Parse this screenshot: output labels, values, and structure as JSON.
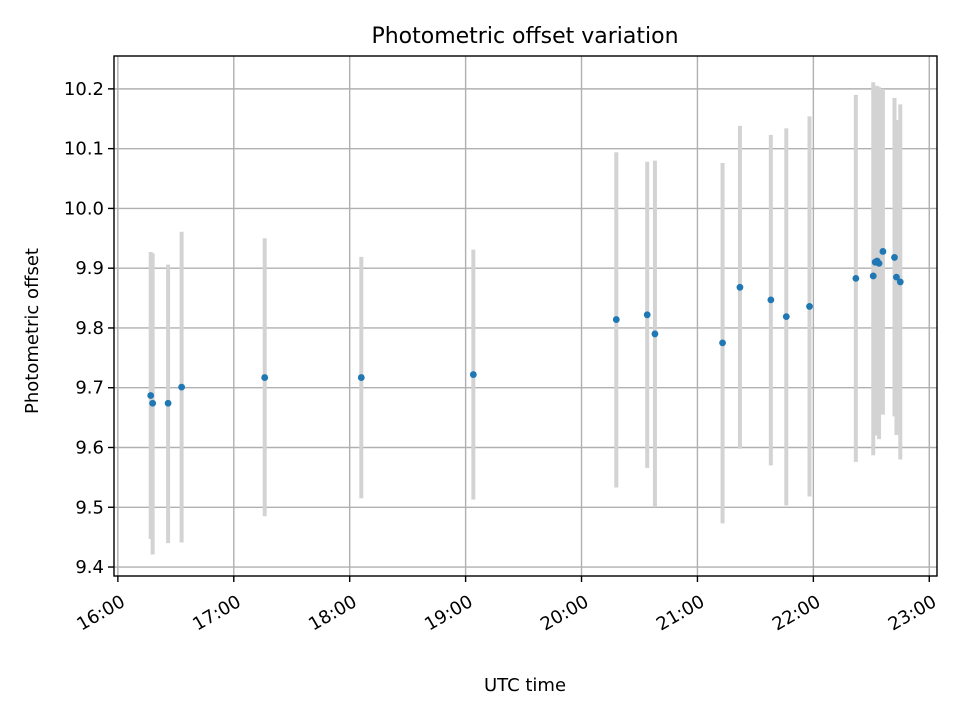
{
  "chart_data": {
    "type": "scatter",
    "title": "Photometric offset variation",
    "xlabel": "UTC time",
    "ylabel": "Photometric offset",
    "xlim": [
      "15:58",
      "23:04"
    ],
    "ylim": [
      9.385,
      10.255
    ],
    "xticks": [
      "16:00",
      "17:00",
      "18:00",
      "19:00",
      "20:00",
      "21:00",
      "22:00",
      "23:00"
    ],
    "yticks": [
      "9.4",
      "9.5",
      "9.6",
      "9.7",
      "9.8",
      "9.9",
      "10.0",
      "10.1",
      "10.2"
    ],
    "grid": true,
    "series": [
      {
        "color": "#1f77b4",
        "error_color": "#d3d3d3",
        "points": [
          {
            "x": "16:17",
            "y": 9.687,
            "ylo": 9.447,
            "yhi": 9.927
          },
          {
            "x": "16:18",
            "y": 9.674,
            "ylo": 9.421,
            "yhi": 9.925
          },
          {
            "x": "16:26",
            "y": 9.674,
            "ylo": 9.44,
            "yhi": 9.906
          },
          {
            "x": "16:33",
            "y": 9.701,
            "ylo": 9.441,
            "yhi": 9.961
          },
          {
            "x": "17:16",
            "y": 9.717,
            "ylo": 9.485,
            "yhi": 9.95
          },
          {
            "x": "18:06",
            "y": 9.717,
            "ylo": 9.515,
            "yhi": 9.919
          },
          {
            "x": "19:04",
            "y": 9.722,
            "ylo": 9.513,
            "yhi": 9.931
          },
          {
            "x": "20:18",
            "y": 9.814,
            "ylo": 9.533,
            "yhi": 10.094
          },
          {
            "x": "20:34",
            "y": 9.822,
            "ylo": 9.566,
            "yhi": 10.078
          },
          {
            "x": "20:38",
            "y": 9.79,
            "ylo": 9.5,
            "yhi": 10.08
          },
          {
            "x": "21:13",
            "y": 9.775,
            "ylo": 9.473,
            "yhi": 10.076
          },
          {
            "x": "21:22",
            "y": 9.868,
            "ylo": 9.598,
            "yhi": 10.138
          },
          {
            "x": "21:38",
            "y": 9.847,
            "ylo": 9.57,
            "yhi": 10.123
          },
          {
            "x": "21:46",
            "y": 9.819,
            "ylo": 9.503,
            "yhi": 10.134
          },
          {
            "x": "21:58",
            "y": 9.836,
            "ylo": 9.518,
            "yhi": 10.154
          },
          {
            "x": "22:22",
            "y": 9.883,
            "ylo": 9.576,
            "yhi": 10.19
          },
          {
            "x": "22:31",
            "y": 9.887,
            "ylo": 9.587,
            "yhi": 10.211
          },
          {
            "x": "22:32",
            "y": 9.91,
            "ylo": 9.62,
            "yhi": 10.2
          },
          {
            "x": "22:33",
            "y": 9.912,
            "ylo": 9.625,
            "yhi": 10.205
          },
          {
            "x": "22:34",
            "y": 9.908,
            "ylo": 9.614,
            "yhi": 10.203
          },
          {
            "x": "22:36",
            "y": 9.928,
            "ylo": 9.655,
            "yhi": 10.2
          },
          {
            "x": "22:42",
            "y": 9.918,
            "ylo": 9.652,
            "yhi": 10.185
          },
          {
            "x": "22:43",
            "y": 9.885,
            "ylo": 9.621,
            "yhi": 10.148
          },
          {
            "x": "22:45",
            "y": 9.877,
            "ylo": 9.58,
            "yhi": 10.174
          }
        ]
      }
    ]
  }
}
